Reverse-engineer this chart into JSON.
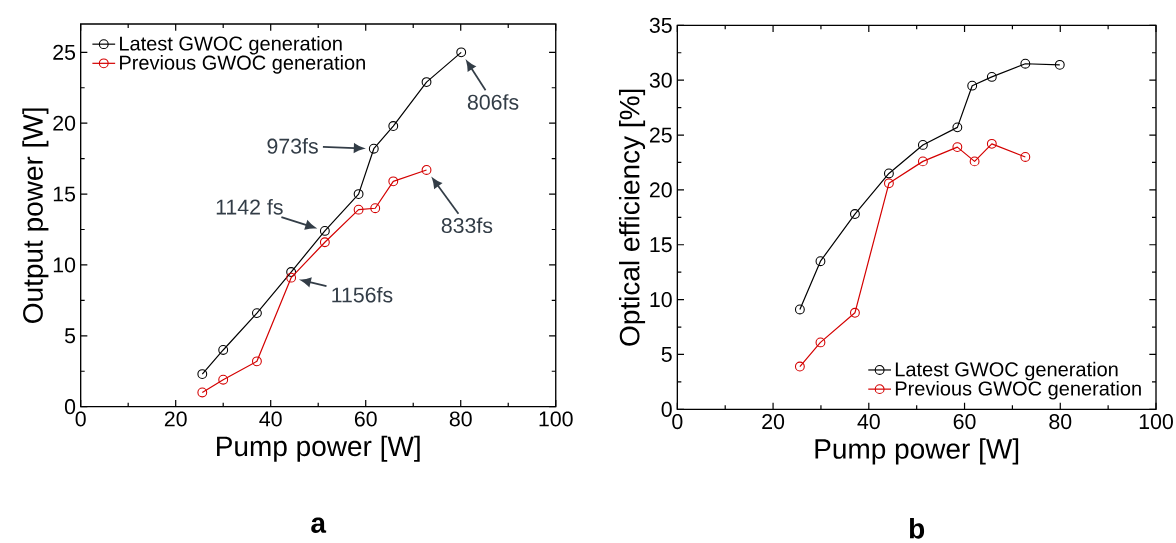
{
  "chart_data": [
    {
      "type": "line",
      "xlabel": "Pump power [W]",
      "ylabel": "Output power [W]",
      "xlim": [
        0,
        100
      ],
      "ylim": [
        0,
        27
      ],
      "xticks": [
        0,
        20,
        40,
        60,
        80,
        100
      ],
      "yticks": [
        0,
        5,
        10,
        15,
        20,
        25
      ],
      "legend": "top left",
      "marker": "circle",
      "line_style": "solid",
      "series": [
        {
          "name": "Latest GWOC generation",
          "color": "#000000",
          "x": [
            25.6,
            30.0,
            37.1,
            44.3,
            51.4,
            58.5,
            61.7,
            65.8,
            72.8,
            80.1
          ],
          "values": [
            2.3,
            4.0,
            6.6,
            9.5,
            12.4,
            15.0,
            18.2,
            19.8,
            22.9,
            25.0
          ]
        },
        {
          "name": "Previous GWOC generation",
          "color": "#d40000",
          "x": [
            25.6,
            30.0,
            37.1,
            44.3,
            51.4,
            58.5,
            62.0,
            65.8,
            72.8
          ],
          "values": [
            1.0,
            1.9,
            3.2,
            9.1,
            11.6,
            13.9,
            14.0,
            15.9,
            16.7
          ]
        }
      ],
      "annotations": [
        {
          "text": "806fs",
          "x": 80.1,
          "y": 25.0
        },
        {
          "text": "973fs",
          "x": 61.7,
          "y": 18.2
        },
        {
          "text": "1142 fs",
          "x": 51.4,
          "y": 12.4
        },
        {
          "text": "1156fs",
          "x": 44.3,
          "y": 9.1
        },
        {
          "text": "833fs",
          "x": 72.8,
          "y": 16.7
        },
        "a"
      ]
    },
    {
      "type": "line",
      "xlabel": "Pump power [W]",
      "ylabel": "Optical efficiency [%]",
      "xlim": [
        0,
        100
      ],
      "ylim": [
        0,
        35
      ],
      "xticks": [
        0,
        20,
        40,
        60,
        80,
        100
      ],
      "yticks": [
        0,
        5,
        10,
        15,
        20,
        25,
        30,
        35
      ],
      "legend": "bottom right",
      "marker": "circle",
      "line_style": "solid",
      "series": [
        {
          "name": "Latest GWOC generation",
          "color": "#000000",
          "x": [
            25.6,
            29.9,
            37.1,
            44.2,
            51.3,
            58.5,
            61.6,
            65.7,
            72.7,
            79.9
          ],
          "values": [
            9.1,
            13.5,
            17.8,
            21.5,
            24.1,
            25.7,
            29.5,
            30.3,
            31.5,
            31.4
          ]
        },
        {
          "name": "Previous GWOC generation",
          "color": "#d40000",
          "x": [
            25.6,
            29.9,
            37.1,
            44.2,
            51.3,
            58.5,
            62.1,
            65.7,
            72.7
          ],
          "values": [
            3.9,
            6.1,
            8.8,
            20.6,
            22.6,
            23.9,
            22.6,
            24.2,
            23.0
          ]
        }
      ],
      "annotations": [
        "b"
      ]
    }
  ]
}
